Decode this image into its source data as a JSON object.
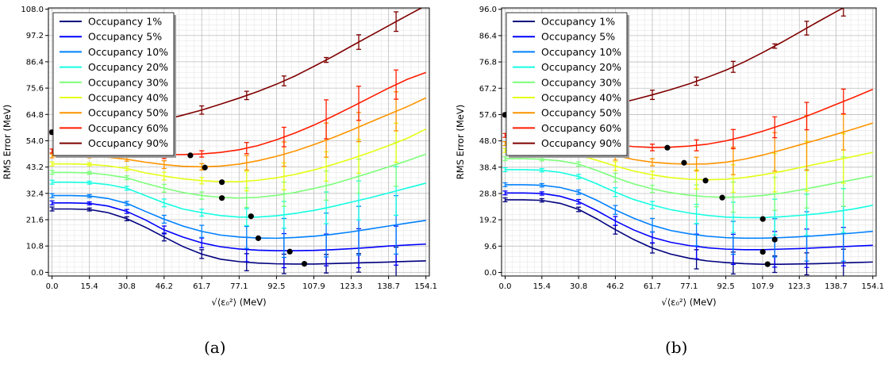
{
  "captions": [
    "(a)",
    "(b)"
  ],
  "colors": [
    "#00007f",
    "#0000ff",
    "#0080ff",
    "#15ffe1",
    "#7cff79",
    "#e4ff12",
    "#ff9400",
    "#ff1d00",
    "#7f0000"
  ],
  "chart_data": [
    {
      "type": "line",
      "title": "",
      "xlabel": "√⟨ε₀²⟩ (MeV)",
      "ylabel": "RMS Error (MeV)",
      "xlim": [
        -1.5,
        155.5
      ],
      "ylim": [
        -1.5,
        108.5
      ],
      "xticks": [
        "0.0",
        "15.4",
        "30.8",
        "46.2",
        "61.7",
        "77.1",
        "92.5",
        "107.9",
        "123.3",
        "138.7",
        "154.1"
      ],
      "yticks": [
        "0.0",
        "10.8",
        "21.6",
        "32.4",
        "43.2",
        "54.0",
        "64.8",
        "75.6",
        "86.4",
        "97.2",
        "108.0"
      ],
      "grid": true,
      "legend_position": "top-left",
      "x": [
        0,
        7.7,
        15.4,
        23.1,
        30.8,
        38.5,
        46.2,
        53.9,
        61.7,
        69.4,
        77.1,
        84.8,
        92.5,
        100.2,
        107.9,
        115.6,
        123.3,
        131.0,
        138.7,
        146.4,
        154.1
      ],
      "error_x": [
        0,
        15.4,
        30.8,
        46.2,
        61.7,
        80.2,
        95.6,
        113.0,
        126.4,
        141.8
      ],
      "series": [
        {
          "name": "Occupancy 1%",
          "y": [
            26,
            26,
            25.8,
            24.5,
            22,
            18.5,
            14.5,
            10.6,
            7.5,
            5.4,
            4.4,
            3.8,
            3.5,
            3.4,
            3.4,
            3.6,
            3.8,
            4.0,
            4.2,
            4.5,
            4.7
          ],
          "errors": [
            0.8,
            0.6,
            0.8,
            1.6,
            1.8,
            3.5,
            4.0,
            3.8,
            3.8,
            6.0
          ],
          "best": [
            104,
            3.5
          ]
        },
        {
          "name": "Occupancy 5%",
          "y": [
            28.5,
            28.5,
            28.3,
            27.2,
            25,
            21.5,
            17.4,
            14.5,
            12.1,
            10.5,
            9.6,
            9.1,
            8.9,
            8.9,
            9.0,
            9.3,
            9.7,
            10.2,
            10.8,
            11.2,
            11.6
          ],
          "errors": [
            0.8,
            0.6,
            0.8,
            1.6,
            2.0,
            5.0,
            7.0,
            6.5,
            8.0,
            8.0
          ],
          "best": [
            98,
            8.5
          ]
        },
        {
          "name": "Occupancy 10%",
          "y": [
            31.5,
            31.5,
            31.3,
            30.3,
            28.3,
            25,
            21.8,
            19,
            16.8,
            15.3,
            14.5,
            14.1,
            14.0,
            14.3,
            14.8,
            15.6,
            16.6,
            17.8,
            19.0,
            20.2,
            21.3
          ],
          "errors": [
            0.8,
            0.6,
            0.8,
            1.6,
            2.5,
            4.5,
            8.0,
            9.0,
            10.0,
            12.0
          ],
          "best": [
            85,
            14
          ]
        },
        {
          "name": "Occupancy 20%",
          "y": [
            37,
            37,
            36.8,
            36,
            34.5,
            31.5,
            28.5,
            26,
            24.5,
            23.3,
            22.7,
            22.7,
            23.2,
            24.2,
            25.4,
            27.0,
            28.8,
            30.6,
            32.6,
            34.6,
            36.6
          ],
          "errors": [
            0.8,
            0.6,
            0.8,
            1.6,
            1.4,
            3.5,
            5.5,
            6.5,
            8.0,
            10.0
          ],
          "best": [
            82,
            23
          ]
        },
        {
          "name": "Occupancy 30%",
          "y": [
            41,
            41,
            40.8,
            40,
            38.8,
            36.5,
            34.5,
            32.8,
            31.5,
            30.8,
            30.5,
            30.8,
            31.6,
            32.8,
            34.4,
            36.2,
            38.5,
            40.8,
            43.3,
            45.8,
            48.5
          ],
          "errors": [
            0.8,
            0.6,
            0.8,
            1.6,
            1.5,
            4.0,
            5.0,
            6.0,
            7.0,
            9.0
          ],
          "best": [
            70,
            30.5
          ]
        },
        {
          "name": "Occupancy 40%",
          "y": [
            44.5,
            44.5,
            44.3,
            43.7,
            42.6,
            40.8,
            39.5,
            38.4,
            37.6,
            37.2,
            37.2,
            37.8,
            38.8,
            40.2,
            42.0,
            44.2,
            46.6,
            49.2,
            52.0,
            55.0,
            58.8
          ],
          "errors": [
            0.8,
            0.6,
            0.8,
            1.6,
            1.3,
            4.0,
            5.5,
            6.0,
            7.0,
            8.0
          ],
          "best": [
            70,
            37
          ]
        },
        {
          "name": "Occupancy 50%",
          "y": [
            47.8,
            47.8,
            47.6,
            47.2,
            46.4,
            45.2,
            44.2,
            43.5,
            43.3,
            43.6,
            44.4,
            45.8,
            47.6,
            49.8,
            52.4,
            55.2,
            58.3,
            61.6,
            64.8,
            68.0,
            71.6
          ],
          "errors": [
            0.8,
            0.6,
            0.8,
            1.6,
            1.3,
            3.0,
            5.0,
            7.0,
            6.0,
            8.0
          ],
          "best": [
            63,
            43
          ]
        },
        {
          "name": "Occupancy 60%",
          "y": [
            49.8,
            49.8,
            49.6,
            49.3,
            48.9,
            48.5,
            48.3,
            48.3,
            48.6,
            49.2,
            50.3,
            52.0,
            54.4,
            57.2,
            60.4,
            64.0,
            67.8,
            71.7,
            75.6,
            79.2,
            82.0
          ],
          "errors": [
            0.8,
            0.6,
            0.8,
            1.6,
            1.3,
            2.3,
            4.0,
            8.0,
            7.0,
            6.0
          ],
          "best": [
            57,
            48
          ]
        },
        {
          "name": "Occupancy 90%",
          "y": [
            57.5,
            57.6,
            58,
            58.6,
            59.6,
            61.0,
            62.6,
            64.5,
            66.6,
            69.0,
            71.5,
            74.2,
            77.2,
            80.6,
            84.5,
            88.5,
            92.8,
            97.0,
            101.2,
            105.4,
            109.5
          ],
          "errors": [
            0.8,
            0.6,
            0.8,
            1.6,
            1.7,
            1.7,
            2.0,
            1.0,
            3.0,
            4.0
          ],
          "best": [
            0,
            57.5
          ]
        }
      ]
    },
    {
      "type": "line",
      "title": "",
      "xlabel": "√⟨ε₀²⟩ (MeV)",
      "ylabel": "RMS Error (MeV)",
      "xlim": [
        -1.5,
        155.5
      ],
      "ylim": [
        -1.3,
        96.5
      ],
      "xticks": [
        "0.0",
        "15.4",
        "30.8",
        "46.2",
        "61.7",
        "77.1",
        "92.5",
        "107.9",
        "123.3",
        "138.7",
        "154.1"
      ],
      "yticks": [
        "0.0",
        "9.6",
        "19.2",
        "28.8",
        "38.4",
        "48.0",
        "57.6",
        "67.2",
        "76.8",
        "86.4",
        "96.0"
      ],
      "grid": true,
      "legend_position": "top-left",
      "x": [
        0,
        7.7,
        15.4,
        23.1,
        30.8,
        38.5,
        46.2,
        53.9,
        61.7,
        69.4,
        77.1,
        84.8,
        92.5,
        100.2,
        107.9,
        115.6,
        123.3,
        131.0,
        138.7,
        146.4,
        154.1
      ],
      "error_x": [
        0,
        15.4,
        30.8,
        46.2,
        61.7,
        80.2,
        95.6,
        113.0,
        126.4,
        141.8
      ],
      "series": [
        {
          "name": "Occupancy 1%",
          "y": [
            26.5,
            26.5,
            26.3,
            25.2,
            23,
            19.5,
            15.6,
            12,
            8.9,
            6.7,
            5.2,
            4.2,
            3.6,
            3.2,
            3.0,
            3.0,
            3.1,
            3.2,
            3.4,
            3.6,
            3.8
          ],
          "errors": [
            0.7,
            0.6,
            0.8,
            1.6,
            1.8,
            3.5,
            4.0,
            3.0,
            4.0,
            5.0
          ],
          "best": [
            110,
            3
          ]
        },
        {
          "name": "Occupancy 5%",
          "y": [
            29,
            29,
            28.8,
            27.8,
            25.8,
            22.5,
            18.8,
            15.5,
            12.8,
            11.0,
            9.8,
            9.0,
            8.5,
            8.3,
            8.3,
            8.5,
            8.7,
            9.0,
            9.3,
            9.6,
            9.9
          ],
          "errors": [
            0.7,
            0.6,
            0.8,
            1.6,
            2.0,
            4.5,
            5.5,
            6.5,
            7.0,
            7.0
          ],
          "best": [
            108,
            7.5
          ]
        },
        {
          "name": "Occupancy 10%",
          "y": [
            32,
            32,
            31.8,
            31,
            29.3,
            26.3,
            22.8,
            19.8,
            17.2,
            15.3,
            14.1,
            13.2,
            12.7,
            12.5,
            12.5,
            12.7,
            13.0,
            13.4,
            13.9,
            14.4,
            15.0
          ],
          "errors": [
            0.7,
            0.6,
            0.8,
            1.6,
            2.5,
            4.0,
            6.0,
            7.0,
            9.0,
            10.0
          ],
          "best": [
            113,
            12
          ]
        },
        {
          "name": "Occupancy 20%",
          "y": [
            37.5,
            37.5,
            37.3,
            36.5,
            35,
            32.3,
            29.3,
            26.6,
            24.6,
            22.9,
            21.7,
            20.8,
            20.2,
            20.0,
            20.0,
            20.3,
            20.8,
            21.4,
            22.2,
            23.2,
            24.5
          ],
          "errors": [
            0.7,
            0.6,
            0.8,
            1.6,
            1.3,
            3.5,
            5.5,
            6.5,
            7.5,
            8.0
          ],
          "best": [
            108,
            19.5
          ]
        },
        {
          "name": "Occupancy 30%",
          "y": [
            41.5,
            41.5,
            41.3,
            40.7,
            39.5,
            37.2,
            34.6,
            32.3,
            30.5,
            29.1,
            28.2,
            27.6,
            27.4,
            27.6,
            28.1,
            28.9,
            30.0,
            31.3,
            32.6,
            33.9,
            35.2
          ],
          "errors": [
            0.7,
            0.6,
            0.8,
            1.6,
            1.3,
            4.0,
            5.5,
            6.0,
            7.0,
            9.0
          ],
          "best": [
            91,
            27.3
          ]
        },
        {
          "name": "Occupancy 40%",
          "y": [
            44.5,
            44.5,
            44.3,
            43.8,
            42.8,
            40.9,
            38.8,
            37.0,
            35.6,
            34.6,
            34.0,
            33.8,
            34.0,
            34.6,
            35.6,
            36.8,
            38.2,
            39.6,
            41.0,
            42.4,
            43.8
          ],
          "errors": [
            0.7,
            0.6,
            0.8,
            1.6,
            1.3,
            3.5,
            5.0,
            7.0,
            9.0,
            9.0
          ],
          "best": [
            84,
            33.5
          ]
        },
        {
          "name": "Occupancy 50%",
          "y": [
            47,
            47,
            46.8,
            46.4,
            45.6,
            44.2,
            42.6,
            41.2,
            40.2,
            39.7,
            39.5,
            39.6,
            40.2,
            41.3,
            42.8,
            44.6,
            46.5,
            48.4,
            50.4,
            52.4,
            54.5
          ],
          "errors": [
            0.7,
            0.6,
            0.8,
            1.6,
            1.3,
            2.5,
            5.0,
            7.0,
            10.0,
            6.5
          ],
          "best": [
            75,
            40
          ]
        },
        {
          "name": "Occupancy 60%",
          "y": [
            50,
            50,
            49.8,
            49.4,
            48.7,
            47.6,
            46.6,
            45.9,
            45.6,
            45.7,
            46.1,
            46.8,
            48.0,
            49.6,
            51.5,
            53.7,
            56.0,
            58.6,
            61.3,
            64.0,
            66.8
          ],
          "errors": [
            0.7,
            0.6,
            0.8,
            1.6,
            1.2,
            2.0,
            3.5,
            3.8,
            5.0,
            4.5
          ],
          "best": [
            68,
            45.5
          ]
        },
        {
          "name": "Occupancy 90%",
          "y": [
            57.5,
            57.6,
            58,
            58.5,
            59.3,
            60.3,
            61.5,
            63.0,
            64.8,
            66.7,
            68.8,
            71.2,
            73.8,
            76.8,
            80.2,
            83.8,
            87.6,
            91.4,
            95.1,
            98.7,
            102.0
          ],
          "errors": [
            0.7,
            0.6,
            0.8,
            1.6,
            1.7,
            1.5,
            2.0,
            0.8,
            2.5,
            3.0
          ],
          "best": [
            0,
            57.5
          ]
        }
      ]
    }
  ]
}
